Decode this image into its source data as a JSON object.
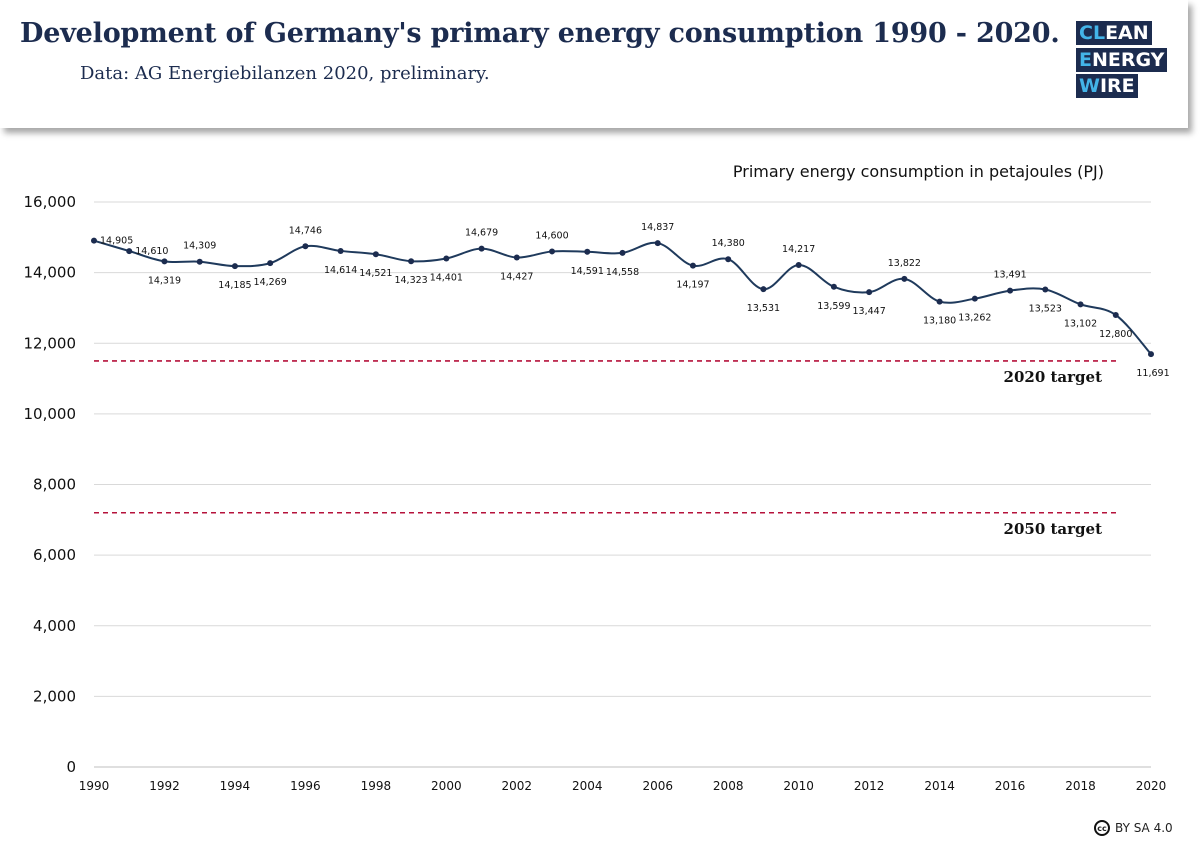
{
  "header": {
    "title": "Development of Germany's primary energy consumption 1990 - 2020.",
    "subtitle": "Data: AG Energiebilanzen 2020, preliminary."
  },
  "logo": {
    "line1_hl": "CL",
    "line1": "EAN",
    "line2_hl": "E",
    "line2": "NERGY",
    "line3_hl": "W",
    "line3": "IRE"
  },
  "license": {
    "icon": "cc-icon",
    "icon_text": "cc",
    "text": "BY SA 4.0"
  },
  "colors": {
    "navy": "#1c2c4f",
    "line": "#1f3a5c",
    "target": "#b5123b",
    "grid": "#d9d9d9",
    "accent": "#43b4e8"
  },
  "chart_data": {
    "type": "line",
    "ylabel": "Primary energy consumption in petajoules (PJ)",
    "ylim": [
      0,
      16000
    ],
    "yticks": [
      0,
      2000,
      4000,
      6000,
      8000,
      10000,
      12000,
      14000,
      16000
    ],
    "ytick_labels": [
      "0",
      "2,000",
      "4,000",
      "6,000",
      "8,000",
      "10,000",
      "12,000",
      "14,000",
      "16,000"
    ],
    "xlim": [
      1990,
      2020
    ],
    "xticks": [
      1990,
      1992,
      1994,
      1996,
      1998,
      2000,
      2002,
      2004,
      2006,
      2008,
      2010,
      2012,
      2014,
      2016,
      2018,
      2020
    ],
    "xtick_labels": [
      "1990",
      "1992",
      "1994",
      "1996",
      "1998",
      "2000",
      "2002",
      "2004",
      "2006",
      "2008",
      "2010",
      "2012",
      "2014",
      "2016",
      "2018",
      "2020"
    ],
    "grid": "horizontal",
    "series": [
      {
        "x": [
          1990,
          1991,
          1992,
          1993,
          1994,
          1995,
          1996,
          1997,
          1998,
          1999,
          2000,
          2001,
          2002,
          2003,
          2004,
          2005,
          2006,
          2007,
          2008,
          2009,
          2010,
          2011,
          2012,
          2013,
          2014,
          2015,
          2016,
          2017,
          2018,
          2019,
          2020
        ],
        "values": [
          14905,
          14610,
          14319,
          14309,
          14185,
          14269,
          14746,
          14614,
          14521,
          14323,
          14401,
          14679,
          14427,
          14600,
          14591,
          14558,
          14837,
          14197,
          14380,
          13531,
          14217,
          13599,
          13447,
          13822,
          13180,
          13262,
          13491,
          13523,
          13102,
          12800,
          11691
        ],
        "labels": [
          "14,905",
          "14,610",
          "14,319",
          "14,309",
          "14,185",
          "14,269",
          "14,746",
          "14,614",
          "14,521",
          "14,323",
          "14,401",
          "14,679",
          "14,427",
          "14,600",
          "14,591",
          "14,558",
          "14,837",
          "14,197",
          "14,380",
          "13,531",
          "14,217",
          "13,599",
          "13,447",
          "13,822",
          "13,180",
          "13,262",
          "13,491",
          "13,523",
          "13,102",
          "12,800",
          "11,691"
        ],
        "label_side": [
          "right",
          "right",
          "below",
          "above",
          "below",
          "below",
          "above",
          "below",
          "below",
          "below",
          "below",
          "above",
          "below",
          "above",
          "below",
          "below",
          "above",
          "below",
          "above",
          "below",
          "above",
          "below",
          "below",
          "above",
          "below",
          "below",
          "above",
          "below",
          "below",
          "below",
          "below"
        ]
      }
    ],
    "targets": [
      {
        "label": "2020 target",
        "value": 11500
      },
      {
        "label": "2050 target",
        "value": 7200
      }
    ]
  }
}
